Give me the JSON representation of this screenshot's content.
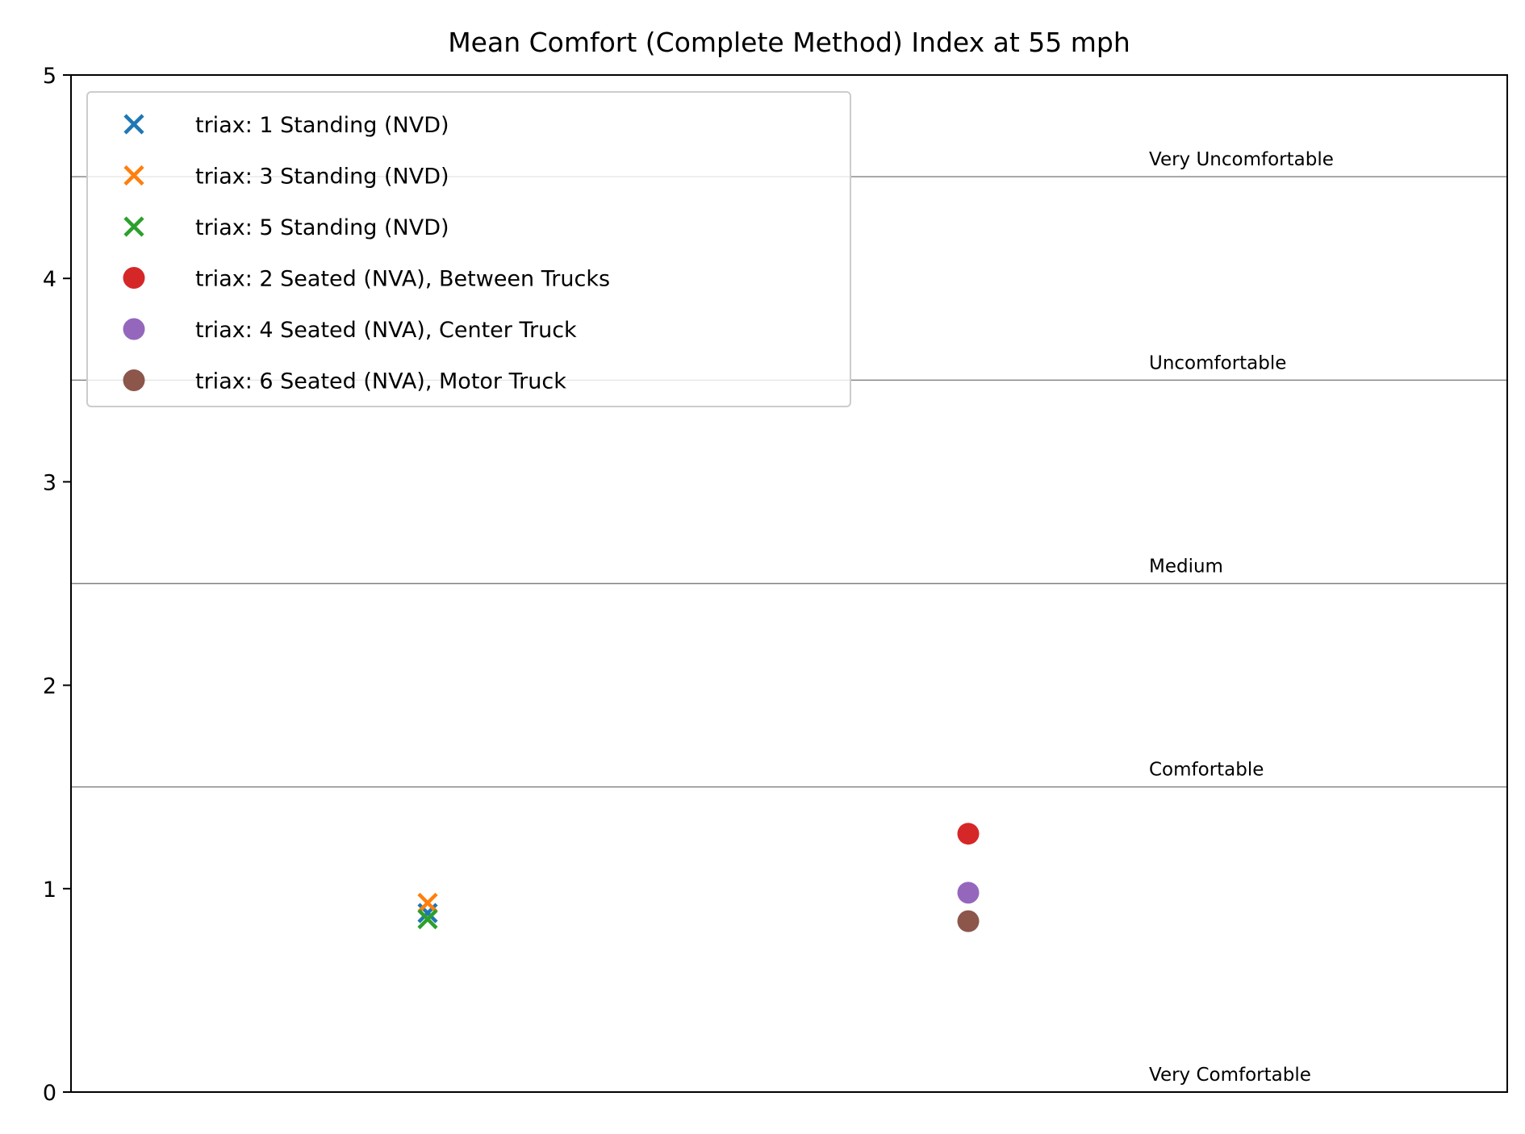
{
  "chart_data": {
    "type": "scatter",
    "title": "Mean Comfort (Complete Method) Index at 55 mph",
    "xlabel": "",
    "ylabel": "",
    "ylim": [
      0,
      5
    ],
    "yticks": [
      "0",
      "1",
      "2",
      "3",
      "4",
      "5"
    ],
    "x_ticks_shown": false,
    "grid": false,
    "legend_position": "upper-left",
    "comfort_bands": {
      "thresholds": [
        1.5,
        2.5,
        3.5,
        4.5
      ],
      "labels": [
        {
          "text": "Very Comfortable",
          "y": 0.0
        },
        {
          "text": "Comfortable",
          "y": 1.5
        },
        {
          "text": "Medium",
          "y": 2.5
        },
        {
          "text": "Uncomfortable",
          "y": 3.5
        },
        {
          "text": "Very Uncomfortable",
          "y": 4.5
        }
      ]
    },
    "groups": [
      "Standing",
      "Seated"
    ],
    "series": [
      {
        "name": "triax: 1 Standing (NVD)",
        "group": "Standing",
        "marker": "x",
        "color": "#1f77b4",
        "y": 0.88
      },
      {
        "name": "triax: 3 Standing (NVD)",
        "group": "Standing",
        "marker": "x",
        "color": "#ff7f0e",
        "y": 0.93
      },
      {
        "name": "triax: 5 Standing (NVD)",
        "group": "Standing",
        "marker": "x",
        "color": "#2ca02c",
        "y": 0.85
      },
      {
        "name": "triax: 2 Seated (NVA), Between Trucks",
        "group": "Seated",
        "marker": "o",
        "color": "#d62728",
        "y": 1.27
      },
      {
        "name": "triax: 4 Seated (NVA), Center Truck",
        "group": "Seated",
        "marker": "o",
        "color": "#9467bd",
        "y": 0.98
      },
      {
        "name": "triax: 6 Seated (NVA), Motor Truck",
        "group": "Seated",
        "marker": "o",
        "color": "#8c564b",
        "y": 0.84
      }
    ]
  }
}
